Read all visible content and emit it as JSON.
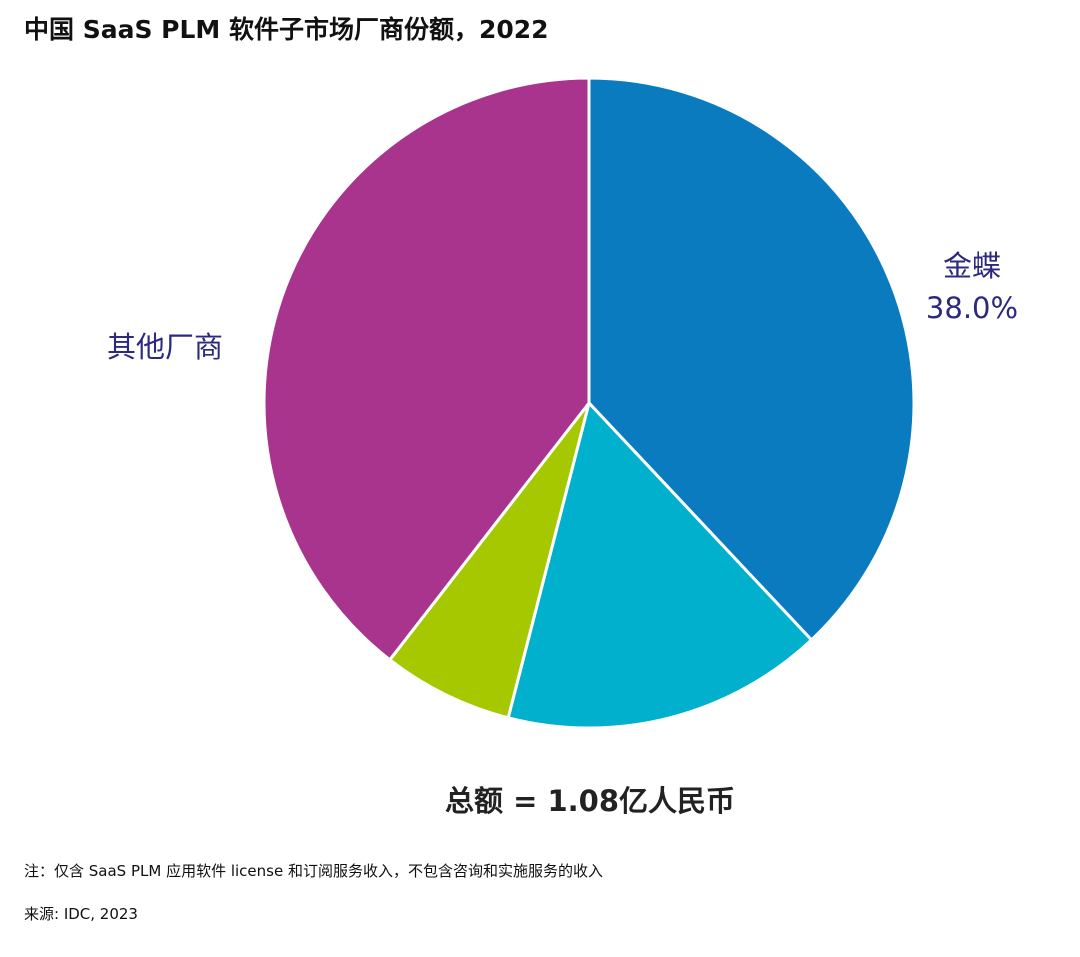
{
  "title": "中国 SaaS PLM 软件子市场厂商份额，2022",
  "total_label": "总额 = 1.08亿人民币",
  "note": "注：仅含 SaaS PLM 应用软件 license 和订阅服务收入，不包含咨询和实施服务的收入",
  "source": "来源: IDC, 2023",
  "chart_data": {
    "type": "pie",
    "title": "中国 SaaS PLM 软件子市场厂商份额，2022",
    "unit": "%",
    "slices": [
      {
        "label": "金蝶",
        "value": 38.0,
        "value_label": "38.0%",
        "color": "#0a7bbf"
      },
      {
        "label": "",
        "value": 16.0,
        "value_label": "",
        "color": "#00b0cc"
      },
      {
        "label": "",
        "value": 6.5,
        "value_label": "",
        "color": "#a6c800"
      },
      {
        "label": "其他厂商",
        "value": 39.5,
        "value_label": "",
        "color": "#a8348e"
      }
    ],
    "start": "top",
    "direction": "clockwise",
    "legend": "none"
  }
}
